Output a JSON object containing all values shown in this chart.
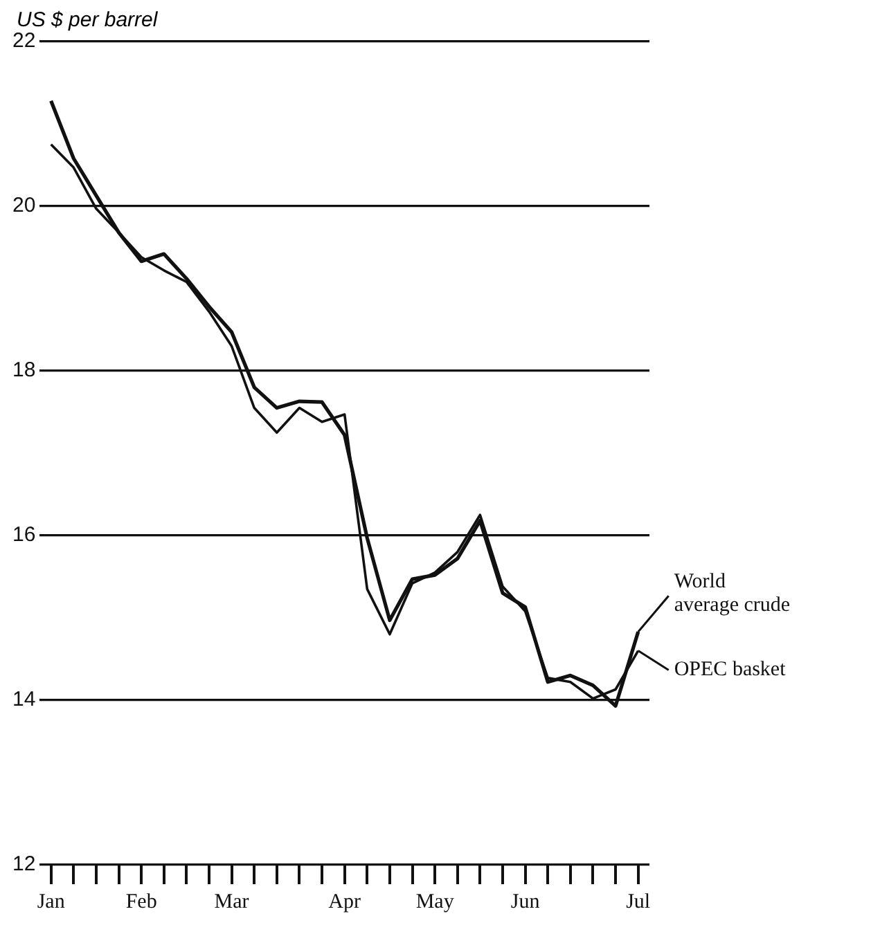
{
  "chart_data": {
    "type": "line",
    "ylabel": "US $ per barrel",
    "categories": [
      "Jan",
      null,
      null,
      null,
      "Feb",
      null,
      null,
      null,
      "Mar",
      null,
      null,
      null,
      null,
      "Apr",
      null,
      null,
      null,
      "May",
      null,
      null,
      null,
      "Jun",
      null,
      null,
      null,
      null,
      "Jul"
    ],
    "series": [
      {
        "name": "World average crude",
        "color": "#111111",
        "values": [
          21.28,
          20.58,
          20.13,
          19.68,
          19.33,
          19.42,
          19.12,
          18.78,
          18.47,
          17.8,
          17.55,
          17.63,
          17.62,
          17.22,
          15.97,
          14.97,
          15.47,
          15.52,
          15.72,
          16.18,
          15.3,
          15.13,
          14.22,
          14.3,
          14.18,
          13.93,
          14.83
        ]
      },
      {
        "name": "OPEC basket",
        "color": "#111111",
        "values": [
          20.75,
          20.47,
          19.97,
          19.68,
          19.38,
          19.22,
          19.08,
          18.72,
          18.3,
          17.55,
          17.25,
          17.55,
          17.38,
          17.47,
          15.35,
          14.8,
          15.42,
          15.55,
          15.8,
          16.25,
          15.38,
          15.08,
          14.27,
          14.22,
          14.02,
          14.13,
          14.6
        ]
      }
    ],
    "ylim": [
      12,
      22
    ],
    "yticks": [
      12,
      14,
      16,
      18,
      20,
      22
    ],
    "grid": "y",
    "marker": "none",
    "line_style": "solid"
  }
}
